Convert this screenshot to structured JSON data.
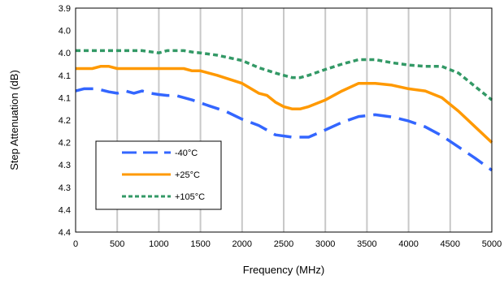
{
  "chart_data": {
    "type": "line",
    "xlabel": "Frequency (MHz)",
    "ylabel": "Step Attenuation (dB)",
    "xlim": [
      0,
      5000
    ],
    "ylim": [
      3.9,
      4.4
    ],
    "x_ticks": [
      "0",
      "500",
      "1000",
      "1500",
      "2000",
      "2500",
      "3000",
      "3500",
      "4000",
      "4500",
      "5000"
    ],
    "y_ticks": [
      "3.9",
      "4.0",
      "4.0",
      "4.1",
      "4.1",
      "4.2",
      "4.2",
      "4.3",
      "4.3",
      "4.4",
      "4.4"
    ],
    "grid": "vertical",
    "legend_position": "bottom-left",
    "series": [
      {
        "name": "-40°C",
        "color": "#3366ff",
        "dash": "long-dash",
        "x": [
          0,
          100,
          250,
          400,
          500,
          600,
          700,
          800,
          900,
          1000,
          1100,
          1200,
          1400,
          1600,
          1800,
          2000,
          2200,
          2400,
          2600,
          2800,
          3000,
          3200,
          3400,
          3600,
          3800,
          4000,
          4200,
          4400,
          4600,
          4800,
          5000
        ],
        "values": [
          4.085,
          4.08,
          4.08,
          4.087,
          4.09,
          4.085,
          4.09,
          4.085,
          4.09,
          4.093,
          4.095,
          4.095,
          4.105,
          4.118,
          4.13,
          4.148,
          4.162,
          4.183,
          4.188,
          4.188,
          4.172,
          4.155,
          4.142,
          4.138,
          4.143,
          4.152,
          4.165,
          4.185,
          4.21,
          4.235,
          4.262
        ]
      },
      {
        "name": "+25°C",
        "color": "#ff9900",
        "dash": "solid",
        "x": [
          0,
          200,
          300,
          400,
          500,
          700,
          1000,
          1300,
          1400,
          1500,
          1700,
          2000,
          2200,
          2300,
          2400,
          2500,
          2600,
          2700,
          2800,
          3000,
          3200,
          3400,
          3600,
          3800,
          4000,
          4200,
          4400,
          4600,
          4800,
          5000
        ],
        "values": [
          4.035,
          4.035,
          4.03,
          4.03,
          4.035,
          4.035,
          4.035,
          4.035,
          4.04,
          4.04,
          4.05,
          4.068,
          4.09,
          4.095,
          4.11,
          4.12,
          4.125,
          4.125,
          4.12,
          4.105,
          4.085,
          4.068,
          4.068,
          4.072,
          4.08,
          4.085,
          4.1,
          4.13,
          4.165,
          4.2
        ]
      },
      {
        "name": "+105°C",
        "color": "#339966",
        "dash": "short-dash",
        "x": [
          0,
          200,
          500,
          800,
          1000,
          1100,
          1200,
          1300,
          1400,
          1500,
          1700,
          2000,
          2200,
          2400,
          2600,
          2700,
          2800,
          3000,
          3200,
          3400,
          3600,
          3800,
          4000,
          4200,
          4400,
          4600,
          4800,
          5000
        ],
        "values": [
          3.995,
          3.995,
          3.995,
          3.995,
          4.0,
          3.995,
          3.995,
          3.995,
          3.998,
          4.0,
          4.005,
          4.017,
          4.033,
          4.045,
          4.055,
          4.055,
          4.05,
          4.037,
          4.025,
          4.015,
          4.015,
          4.022,
          4.027,
          4.03,
          4.03,
          4.045,
          4.075,
          4.105
        ]
      }
    ]
  }
}
